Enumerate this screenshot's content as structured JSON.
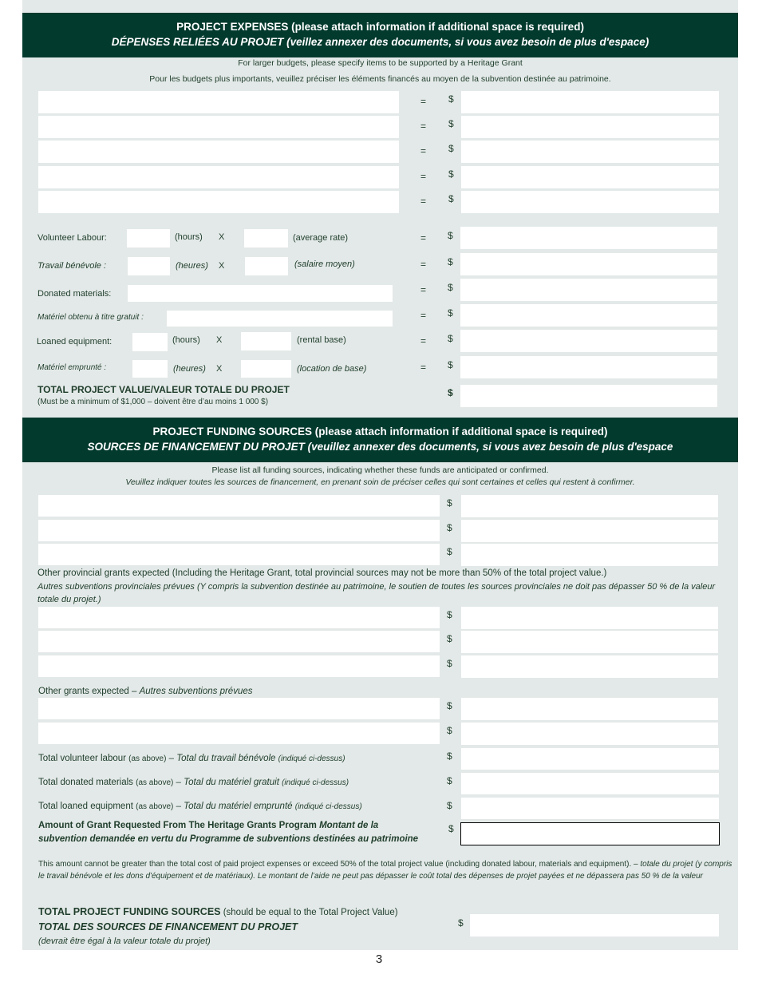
{
  "expenses": {
    "title_en": "PROJECT EXPENSES (please attach information if additional space is required)",
    "title_fr": "DÉPENSES RELIÉES AU PROJET (veillez annexer des documents, si vous avez besoin de plus d'espace)",
    "note_en": "For larger budgets, please specify items to be supported by a Heritage Grant",
    "note_fr": "Pour les budgets plus importants, veuillez préciser les éléments financés au moyen de la subvention destinée au patrimoine.",
    "equals": "=",
    "dollar": "$",
    "volunteer_en": "Volunteer Labour:",
    "volunteer_fr": "Travail bénévole :",
    "hours_en": "(hours)",
    "hours_fr": "(heures)",
    "times": "X",
    "average_rate": "(average rate)",
    "salaire_moyen": "(salaire moyen)",
    "donated_en": "Donated materials:",
    "donated_fr": "Matériel obtenu à titre gratuit :",
    "loaned_en": "Loaned equipment:",
    "loaned_fr": "Matériel emprunté :",
    "rental_base": "(rental base)",
    "location_base": "(location de base)",
    "total_label": "TOTAL PROJECT VALUE/VALEUR TOTALE DU PROJET",
    "total_note": "(Must be a minimum of $1,000 – doivent être d’au moins 1 000 $)"
  },
  "funding": {
    "title_en": "PROJECT FUNDING SOURCES (please attach information if additional space is required)",
    "title_fr": "SOURCES DE FINANCEMENT DU PROJET (veuillez annexer des documents, si vous avez besoin de  plus d'espace",
    "note_en": "Please list all funding sources, indicating whether these funds are anticipated or confirmed.",
    "note_fr": "Veuillez indiquer toutes les sources de financement, en prenant soin de préciser celles qui sont certaines et celles qui restent à confirmer.",
    "provincial_en": "Other provincial grants expected (Including the Heritage Grant, total provincial sources may not be more than 50% of the total project value.)",
    "provincial_fr": "Autres subventions provinciales prévues (Y compris la subvention destinée au patrimoine, le soutien de toutes les sources provinciales ne doit pas dépasser 50 % de la valeur totale du projet.)",
    "other_en": "Other grants expected – ",
    "other_fr": "Autres subventions prévues",
    "tv_en": "Total volunteer labour ",
    "tv_as": "(as above)",
    "tv_fr": " – Total du travail bénévole ",
    "tv_ind": "(indiqué ci-dessus)",
    "td_en": "Total donated materials ",
    "td_fr": " – Total du matériel gratuit ",
    "tl_en": "Total loaned equipment ",
    "tl_fr": " – Total du matériel emprunté ",
    "grant_en": "Amount of Grant Requested From The Heritage Grants Program ",
    "grant_fr": "Montant de la subvention demandée en vertu du Programme de subventions destinées au patrimoine",
    "grant_note_en": "This amount cannot be greater than the total cost of paid project expenses or exceed 50% of the total project value (including donated labour,  materials and equipment). – ",
    "grant_note_fr": " totale du projet (y compris le travail bénévole et les dons d'équipement et de matériaux). Le montant de l’aide ne peut pas dépasser le coût total des dépenses de projet payées et ne dépassera pas 50 % de la valeur",
    "total_en": "TOTAL PROJECT FUNDING SOURCES",
    "total_en_note": " (should be equal to the Total Project Value)",
    "total_fr": "TOTAL DES SOURCES DE FINANCEMENT DU PROJET",
    "total_fr_note": "(devrait être égal à la valeur totale du projet)"
  },
  "page_number": "3"
}
